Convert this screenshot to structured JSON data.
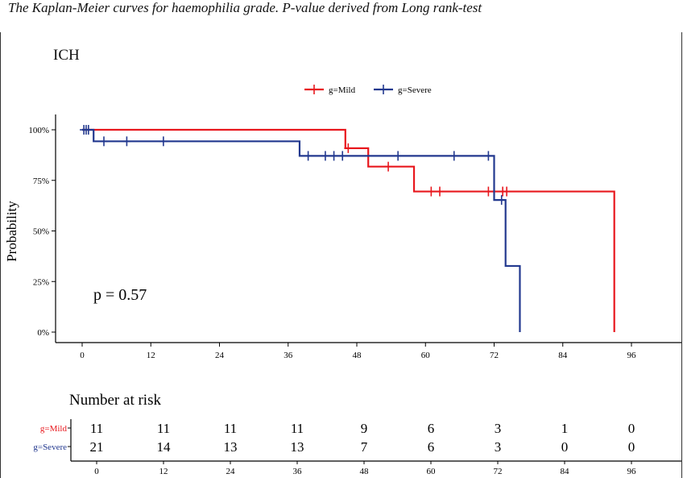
{
  "caption": "The Kaplan-Meier curves for haemophilia grade. P-value derived  from Long rank-test",
  "chart_data": {
    "type": "line",
    "title": "ICH",
    "ylabel": "Probability",
    "xlabel": "",
    "xlim": [
      -4,
      100
    ],
    "ylim": [
      0,
      100
    ],
    "x_ticks": [
      0,
      12,
      24,
      36,
      48,
      60,
      72,
      84,
      96
    ],
    "y_ticks": [
      0,
      25,
      50,
      75,
      100
    ],
    "y_tick_labels": [
      "0%",
      "25%",
      "50%",
      "75%",
      "100%"
    ],
    "grid": false,
    "legend_position": "top",
    "annotation": "p = 0.57",
    "series": [
      {
        "name": "g=Mild",
        "color": "#e8181e",
        "steps": [
          [
            0,
            100
          ],
          [
            46,
            90.9
          ],
          [
            50,
            81.8
          ],
          [
            58,
            69.5
          ],
          [
            93,
            0
          ]
        ],
        "end_x": 93,
        "censor_x": [
          46.5,
          53.5,
          61,
          62.5,
          71,
          73.5,
          74.2
        ]
      },
      {
        "name": "g=Severe",
        "color": "#23398f",
        "steps": [
          [
            0,
            100
          ],
          [
            2,
            94.3
          ],
          [
            38,
            87.1
          ],
          [
            72,
            65.3
          ],
          [
            74,
            32.7
          ],
          [
            76.5,
            0
          ]
        ],
        "end_x": 76.5,
        "censor_x": [
          0.3,
          0.7,
          1.1,
          3.8,
          7.8,
          14.2,
          39.5,
          42.5,
          44,
          45.5,
          55.2,
          65,
          71,
          73.3
        ]
      }
    ],
    "risk_table": {
      "title": "Number at risk",
      "times": [
        "0",
        "12",
        "24",
        "36",
        "48",
        "60",
        "72",
        "84",
        "96"
      ],
      "rows": [
        {
          "name": "g=Mild",
          "color": "#e8181e",
          "values": [
            "11",
            "11",
            "11",
            "11",
            "9",
            "6",
            "3",
            "1",
            "0"
          ]
        },
        {
          "name": "g=Severe",
          "color": "#23398f",
          "values": [
            "21",
            "14",
            "13",
            "13",
            "7",
            "6",
            "3",
            "0",
            "0"
          ]
        }
      ]
    }
  }
}
